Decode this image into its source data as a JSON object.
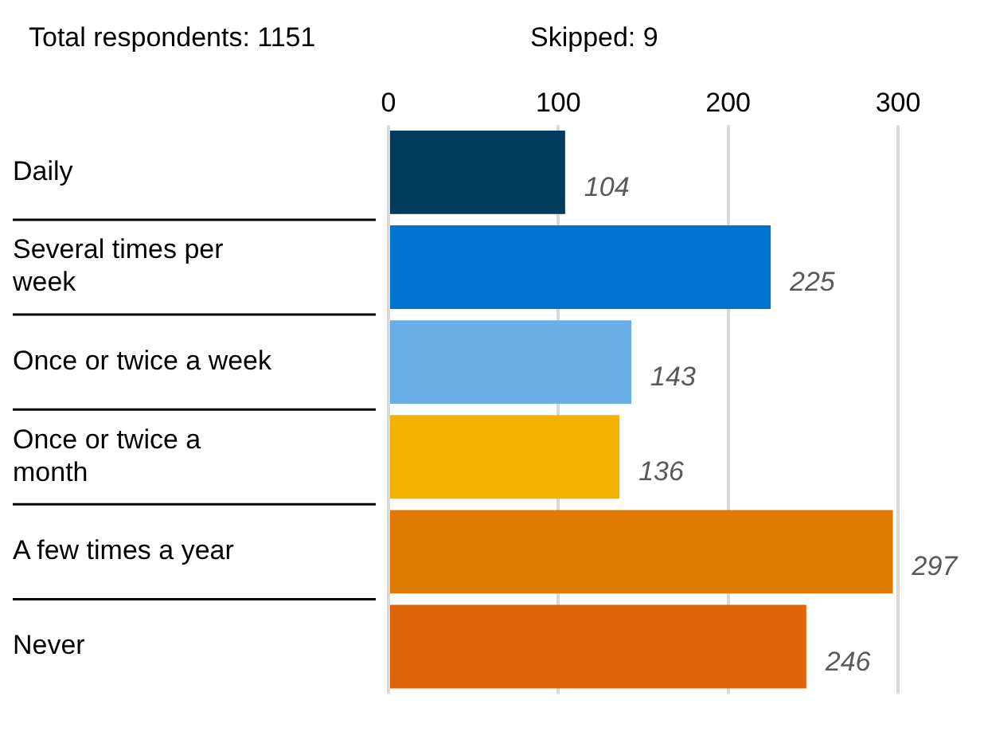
{
  "chart_data": {
    "type": "bar",
    "orientation": "horizontal",
    "categories": [
      "Daily",
      "Several times per week",
      "Once or twice a week",
      "Once or twice a month",
      "A few times a year",
      "Never"
    ],
    "values": [
      104,
      225,
      143,
      136,
      297,
      246
    ],
    "colors": [
      "#003a5c",
      "#0073cf",
      "#6aaee6",
      "#f2b200",
      "#df7b00",
      "#e0640a"
    ],
    "xlim": [
      0,
      300
    ],
    "xticks": [
      0,
      100,
      200,
      300
    ],
    "grid": "x",
    "data_labels": true,
    "legend": false,
    "annotations": [
      "Total respondents: 1151",
      "Skipped: 9"
    ]
  }
}
